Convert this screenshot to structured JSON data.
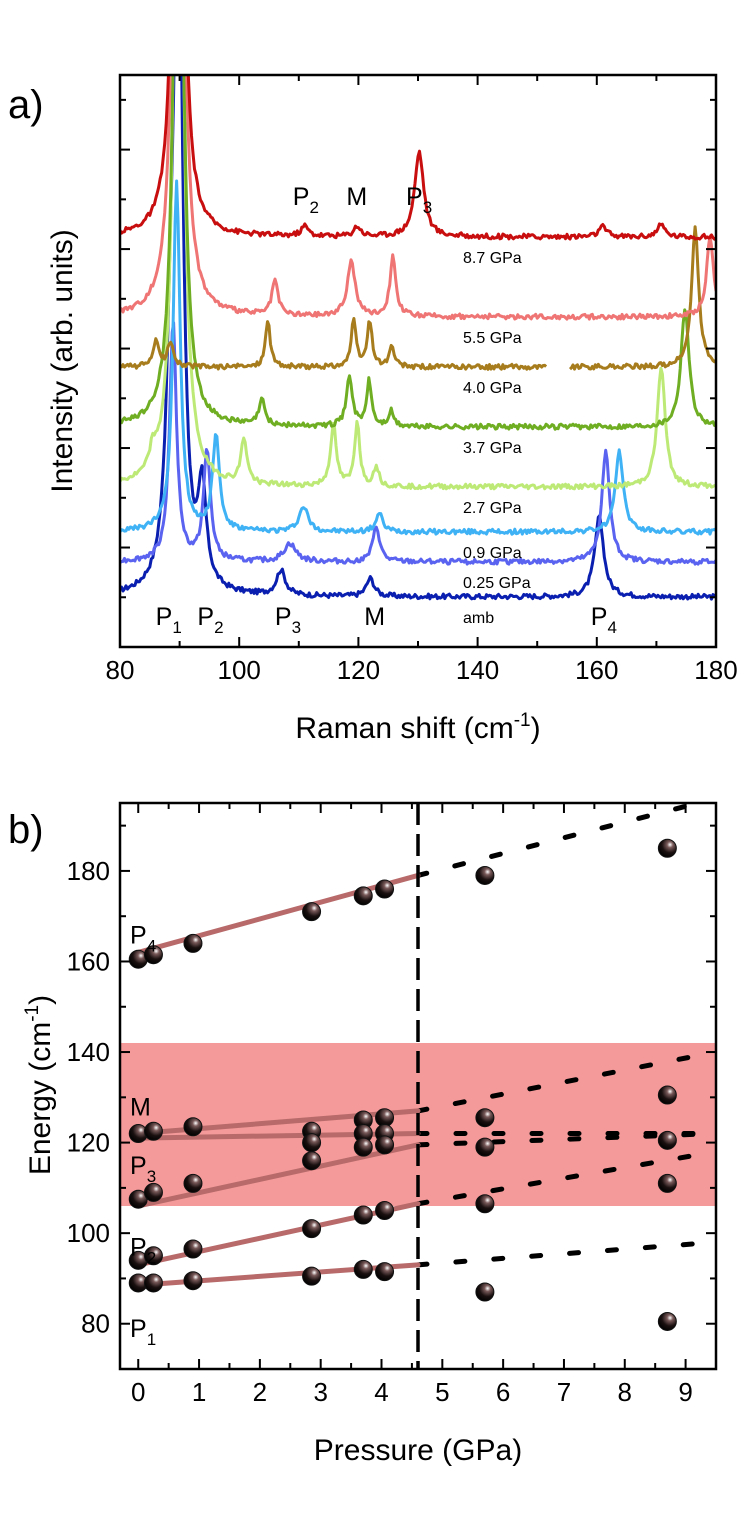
{
  "chart_data": [
    {
      "panel_label": "a)",
      "type": "line",
      "xlabel_main": "Raman shift (cm",
      "xlabel_sup": "-1",
      "xlabel_tail": ")",
      "ylabel": "Intensity (arb. units)",
      "xlim": [
        80,
        180
      ],
      "xticks": [
        80,
        100,
        120,
        140,
        160,
        180
      ],
      "yticks_shown": false,
      "series": [
        {
          "name": "amb",
          "color": "#0a1fb0",
          "offset": 0,
          "big": 7.0,
          "peaks": [
            [
              88.5,
              1.75,
              0.9
            ],
            [
              93.8,
              0.95,
              0.8
            ],
            [
              107.0,
              0.25,
              0.9
            ],
            [
              122.0,
              0.18,
              0.8
            ],
            [
              160.4,
              0.8,
              0.9
            ]
          ]
        },
        {
          "name": "0.25 GPa",
          "color": "#5a63f0",
          "offset": 0.35,
          "big": 0.0,
          "peaks": [
            [
              88.9,
              2.4,
              0.7
            ],
            [
              94.6,
              1.1,
              0.7
            ],
            [
              108.5,
              0.18,
              1.2
            ],
            [
              123.0,
              0.35,
              0.7
            ],
            [
              161.5,
              1.1,
              0.8
            ]
          ]
        },
        {
          "name": "0.9 GPa",
          "color": "#3fb2f5",
          "offset": 0.65,
          "big": 0.0,
          "peaks": [
            [
              89.5,
              3.5,
              0.7
            ],
            [
              96.1,
              0.95,
              0.7
            ],
            [
              110.8,
              0.25,
              0.9
            ],
            [
              123.5,
              0.18,
              0.7
            ],
            [
              163.8,
              0.8,
              0.8
            ]
          ]
        },
        {
          "name": "2.7 GPa",
          "color": "#bdea77",
          "offset": 1.1,
          "big": 9.0,
          "peaks": [
            [
              85.5,
              0.2,
              0.6
            ],
            [
              100.8,
              0.45,
              0.6
            ],
            [
              115.8,
              0.6,
              0.6
            ],
            [
              119.8,
              0.65,
              0.5
            ],
            [
              123.0,
              0.2,
              0.5
            ],
            [
              170.8,
              1.2,
              0.8
            ]
          ]
        },
        {
          "name": "3.7 GPa",
          "color": "#6fad23",
          "offset": 1.7,
          "big": 8.0,
          "peaks": [
            [
              103.8,
              0.25,
              0.6
            ],
            [
              118.5,
              0.5,
              0.6
            ],
            [
              121.8,
              0.45,
              0.5
            ],
            [
              125.5,
              0.15,
              0.5
            ],
            [
              174.8,
              1.2,
              0.8
            ]
          ]
        },
        {
          "name": "4.0 GPa",
          "color": "#a67c1c",
          "offset": 2.3,
          "big": 0.0,
          "gap": [
            151.5,
            155.5
          ],
          "peaks": [
            [
              86.0,
              0.25,
              0.6
            ],
            [
              88.5,
              0.25,
              0.6
            ],
            [
              104.8,
              0.45,
              0.5
            ],
            [
              119.2,
              0.45,
              0.5
            ],
            [
              121.9,
              0.45,
              0.5
            ],
            [
              125.6,
              0.2,
              0.5
            ],
            [
              176.5,
              1.4,
              0.7
            ]
          ]
        },
        {
          "name": "5.5 GPa",
          "color": "#ef7474",
          "offset": 2.8,
          "big": 9.0,
          "peaks": [
            [
              106.0,
              0.35,
              0.6
            ],
            [
              118.8,
              0.55,
              0.8
            ],
            [
              125.8,
              0.6,
              0.6
            ],
            [
              179.0,
              0.8,
              0.7
            ]
          ]
        },
        {
          "name": "8.7 GPa",
          "color": "#c80e0e",
          "offset": 3.6,
          "big": 8.0,
          "peaks": [
            [
              111.0,
              0.1,
              0.7
            ],
            [
              119.8,
              0.1,
              0.7
            ],
            [
              130.2,
              0.85,
              0.9
            ],
            [
              161.0,
              0.1,
              0.8
            ],
            [
              170.8,
              0.12,
              0.8
            ]
          ]
        }
      ],
      "peak_labels_bottom": [
        {
          "main": "P",
          "sub": "1",
          "x": 88
        },
        {
          "main": "P",
          "sub": "2",
          "x": 95
        },
        {
          "main": "P",
          "sub": "3",
          "x": 108
        },
        {
          "main": "M",
          "sub": "",
          "x": 123
        },
        {
          "main": "P",
          "sub": "4",
          "x": 161
        }
      ],
      "peak_labels_top": [
        {
          "main": "P",
          "sub": "2",
          "x": 111
        },
        {
          "main": "M",
          "sub": "",
          "x": 120
        },
        {
          "main": "P",
          "sub": "3",
          "x": 130
        }
      ]
    },
    {
      "panel_label": "b)",
      "type": "scatter",
      "xlabel": "Pressure (GPa)",
      "ylabel_main": "Energy (cm",
      "ylabel_sup": "-1",
      "ylabel_tail": ")",
      "xlim": [
        -0.3,
        9.5
      ],
      "ylim": [
        70,
        195
      ],
      "xticks": [
        0,
        1,
        2,
        3,
        4,
        5,
        6,
        7,
        8,
        9
      ],
      "yticks": [
        80,
        100,
        120,
        140,
        160,
        180
      ],
      "shaded_band": [
        106,
        142
      ],
      "transition_pressure": 4.6,
      "points": [
        [
          0,
          160.5
        ],
        [
          0.25,
          161.5
        ],
        [
          0.9,
          164
        ],
        [
          2.85,
          171
        ],
        [
          3.7,
          174.5
        ],
        [
          4.05,
          176
        ],
        [
          5.7,
          179
        ],
        [
          8.7,
          185
        ],
        [
          0,
          122
        ],
        [
          0.25,
          122.5
        ],
        [
          0.9,
          123.5
        ],
        [
          2.85,
          122.5
        ],
        [
          2.85,
          120
        ],
        [
          3.7,
          125
        ],
        [
          3.7,
          122
        ],
        [
          3.7,
          119
        ],
        [
          4.05,
          125.5
        ],
        [
          4.05,
          122
        ],
        [
          4.05,
          119.5
        ],
        [
          5.7,
          125.5
        ],
        [
          5.7,
          119
        ],
        [
          8.7,
          130.5
        ],
        [
          8.7,
          120.5
        ],
        [
          0,
          107.5
        ],
        [
          0.25,
          109
        ],
        [
          0.9,
          111
        ],
        [
          2.85,
          116
        ],
        [
          8.7,
          111
        ],
        [
          0,
          94
        ],
        [
          0.25,
          95
        ],
        [
          0.9,
          96.5
        ],
        [
          2.85,
          101
        ],
        [
          3.7,
          104
        ],
        [
          4.05,
          105
        ],
        [
          5.7,
          106.5
        ],
        [
          0,
          89
        ],
        [
          0.25,
          89
        ],
        [
          0.9,
          89.5
        ],
        [
          2.85,
          90.5
        ],
        [
          3.7,
          92
        ],
        [
          4.05,
          91.5
        ],
        [
          5.7,
          87
        ],
        [
          8.7,
          80.5
        ]
      ],
      "fit_lines": [
        {
          "mode": "P4",
          "from": [
            0,
            162
          ],
          "to": [
            4.6,
            179
          ]
        },
        {
          "mode": "M",
          "from": [
            0,
            122
          ],
          "to": [
            4.6,
            127
          ]
        },
        {
          "mode": "M",
          "from": [
            0,
            121
          ],
          "to": [
            4.6,
            122
          ]
        },
        {
          "mode": "P3",
          "from": [
            0,
            106
          ],
          "to": [
            4.6,
            119.5
          ]
        },
        {
          "mode": "P2",
          "from": [
            0,
            93
          ],
          "to": [
            4.6,
            106.5
          ]
        },
        {
          "mode": "P1",
          "from": [
            0,
            88.5
          ],
          "to": [
            4.6,
            93
          ]
        }
      ],
      "extrapolations": [
        {
          "from": [
            4.6,
            179
          ],
          "to": [
            9.5,
            196
          ]
        },
        {
          "from": [
            4.6,
            127
          ],
          "to": [
            9.5,
            140
          ]
        },
        {
          "from": [
            4.6,
            122
          ],
          "to": [
            9.5,
            122
          ]
        },
        {
          "from": [
            4.6,
            119.5
          ],
          "to": [
            9.5,
            122
          ]
        },
        {
          "from": [
            4.6,
            106.5
          ],
          "to": [
            9.5,
            118
          ]
        },
        {
          "from": [
            4.6,
            93
          ],
          "to": [
            9.5,
            98
          ]
        }
      ],
      "mode_labels": [
        {
          "main": "P",
          "sub": "4",
          "y": 166
        },
        {
          "main": "M",
          "sub": "",
          "y": 128
        },
        {
          "main": "P",
          "sub": "3",
          "y": 115
        },
        {
          "main": "P",
          "sub": "2",
          "y": 97
        },
        {
          "main": "P",
          "sub": "1",
          "y": 79
        }
      ]
    }
  ],
  "colors": {
    "band": "#f59a9a",
    "fit_line": "#b86a6a",
    "marker": "#111111"
  }
}
